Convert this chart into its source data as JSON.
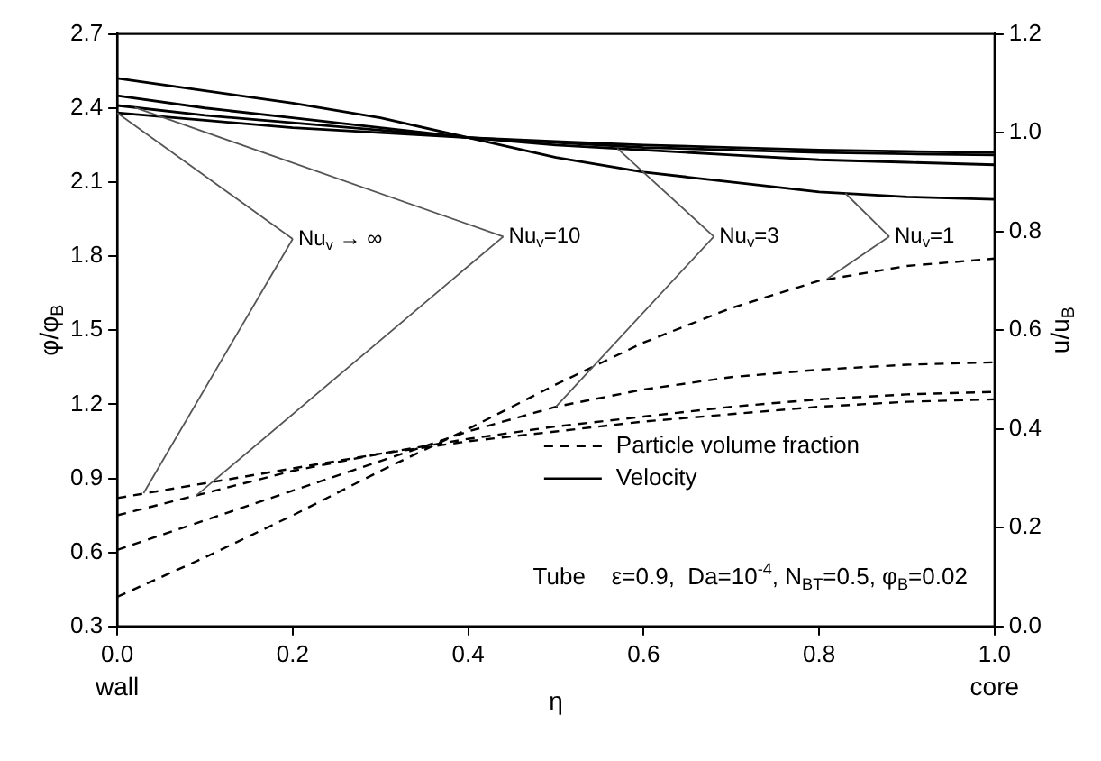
{
  "chart_data": {
    "type": "line",
    "xlabel": "η",
    "ylabel": "φ/φ$_{B}$",
    "y2label": "u/u$_{B}$",
    "x": [
      0,
      0.1,
      0.2,
      0.3,
      0.4,
      0.5,
      0.6,
      0.7,
      0.8,
      0.9,
      1.0
    ],
    "series": [
      {
        "name": "Particle volume fraction",
        "color": "#000000",
        "line_style": "dashed",
        "values": [
          0.82,
          0.88,
          0.94,
          1.0,
          1.05,
          1.09,
          1.13,
          1.16,
          1.19,
          1.21,
          1.22
        ]
      },
      {
        "color": "#000000",
        "line_style": "dashed",
        "values": [
          0.75,
          0.84,
          0.93,
          1.0,
          1.06,
          1.11,
          1.15,
          1.19,
          1.22,
          1.24,
          1.25
        ]
      },
      {
        "color": "#000000",
        "line_style": "dashed",
        "values": [
          0.61,
          0.73,
          0.85,
          0.97,
          1.09,
          1.19,
          1.26,
          1.31,
          1.34,
          1.36,
          1.37
        ]
      },
      {
        "color": "#000000",
        "line_style": "dashed",
        "values": [
          0.42,
          0.58,
          0.75,
          0.93,
          1.1,
          1.28,
          1.45,
          1.59,
          1.7,
          1.76,
          1.79
        ]
      },
      {
        "name": "Velocity",
        "color": "#000000",
        "line_style": "solid",
        "axis": "y2",
        "values": [
          1.04,
          1.025,
          1.01,
          1.0,
          0.99,
          0.982,
          0.975,
          0.97,
          0.965,
          0.962,
          0.96
        ]
      },
      {
        "color": "#000000",
        "line_style": "solid",
        "axis": "y2",
        "values": [
          1.055,
          1.035,
          1.02,
          1.005,
          0.99,
          0.98,
          0.97,
          0.965,
          0.96,
          0.957,
          0.955
        ]
      },
      {
        "color": "#000000",
        "line_style": "solid",
        "axis": "y2",
        "values": [
          1.075,
          1.05,
          1.03,
          1.01,
          0.99,
          0.975,
          0.965,
          0.955,
          0.945,
          0.94,
          0.935
        ]
      },
      {
        "color": "#000000",
        "line_style": "solid",
        "axis": "y2",
        "values": [
          1.11,
          1.085,
          1.06,
          1.03,
          0.99,
          0.95,
          0.92,
          0.9,
          0.88,
          0.87,
          0.865
        ]
      }
    ],
    "xlim": [
      0,
      1
    ],
    "xticks": [
      {
        "value": 0,
        "label": "0.0"
      },
      0.2,
      0.4,
      0.6,
      0.8,
      {
        "value": 1,
        "label": "1.0"
      }
    ],
    "ylim": [
      0.3,
      2.7
    ],
    "yticks": [
      0.3,
      0.6,
      0.9,
      1.2,
      1.5,
      1.8,
      2.1,
      2.4,
      2.7
    ],
    "y2lim": [
      0,
      1.2
    ],
    "y2ticks": [
      {
        "value": 0,
        "label": "0.0"
      },
      0.2,
      0.4,
      0.6,
      0.8,
      {
        "value": 1,
        "label": "1.0"
      },
      1.2
    ],
    "annotations": [
      {
        "text": "Nu$_{v}$ → ∞",
        "x": 0.03,
        "y": 0.84
      },
      {
        "text": "Nu$_{v}$=10",
        "x": 0.09,
        "y": 0.83
      },
      {
        "text": "Nu$_{v}$=3",
        "x": 0.5,
        "y": 1.19
      },
      {
        "text": "Nu$_{v}$=1",
        "x": 0.81,
        "y": 1.71
      },
      "wall",
      "core",
      "Tube    ε=0.9,  Da=10$^{-4}$, N$_{BT}$=0.5, φ$_{B}$=0.02"
    ],
    "grid": false,
    "legend": "bottom right",
    "marker": "none"
  }
}
